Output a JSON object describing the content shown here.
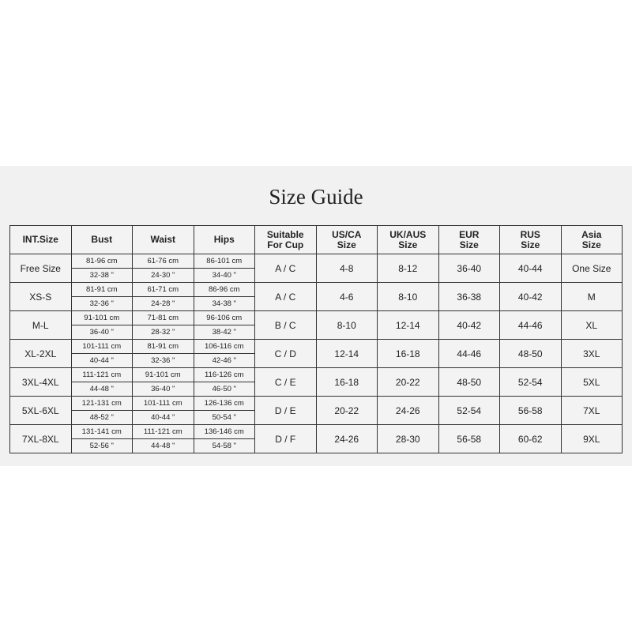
{
  "title": "Size Guide",
  "headers": [
    "INT.Size",
    "Bust",
    "Waist",
    "Hips",
    "Suitable\nFor Cup",
    "US/CA\nSize",
    "UK/AUS\nSize",
    "EUR\nSize",
    "RUS\nSize",
    "Asia\nSize"
  ],
  "rows": [
    {
      "int": "Free Size",
      "bust": [
        "81-96 cm",
        "32-38 \""
      ],
      "waist": [
        "61-76 cm",
        "24-30 \""
      ],
      "hips": [
        "86-101 cm",
        "34-40 \""
      ],
      "cup": "A / C",
      "us": "4-8",
      "uk": "8-12",
      "eur": "36-40",
      "rus": "40-44",
      "asia": "One Size"
    },
    {
      "int": "XS-S",
      "bust": [
        "81-91 cm",
        "32-36 \""
      ],
      "waist": [
        "61-71 cm",
        "24-28 \""
      ],
      "hips": [
        "86-96 cm",
        "34-38 \""
      ],
      "cup": "A / C",
      "us": "4-6",
      "uk": "8-10",
      "eur": "36-38",
      "rus": "40-42",
      "asia": "M"
    },
    {
      "int": "M-L",
      "bust": [
        "91-101 cm",
        "36-40 \""
      ],
      "waist": [
        "71-81 cm",
        "28-32 \""
      ],
      "hips": [
        "96-106 cm",
        "38-42 \""
      ],
      "cup": "B / C",
      "us": "8-10",
      "uk": "12-14",
      "eur": "40-42",
      "rus": "44-46",
      "asia": "XL"
    },
    {
      "int": "XL-2XL",
      "bust": [
        "101-111 cm",
        "40-44 \""
      ],
      "waist": [
        "81-91 cm",
        "32-36 \""
      ],
      "hips": [
        "106-116 cm",
        "42-46 \""
      ],
      "cup": "C / D",
      "us": "12-14",
      "uk": "16-18",
      "eur": "44-46",
      "rus": "48-50",
      "asia": "3XL"
    },
    {
      "int": "3XL-4XL",
      "bust": [
        "111-121 cm",
        "44-48 \""
      ],
      "waist": [
        "91-101 cm",
        "36-40 \""
      ],
      "hips": [
        "116-126 cm",
        "46-50 \""
      ],
      "cup": "C / E",
      "us": "16-18",
      "uk": "20-22",
      "eur": "48-50",
      "rus": "52-54",
      "asia": "5XL"
    },
    {
      "int": "5XL-6XL",
      "bust": [
        "121-131 cm",
        "48-52 \""
      ],
      "waist": [
        "101-111 cm",
        "40-44 \""
      ],
      "hips": [
        "126-136 cm",
        "50-54 \""
      ],
      "cup": "D / E",
      "us": "20-22",
      "uk": "24-26",
      "eur": "52-54",
      "rus": "56-58",
      "asia": "7XL"
    },
    {
      "int": "7XL-8XL",
      "bust": [
        "131-141 cm",
        "52-56 \""
      ],
      "waist": [
        "111-121 cm",
        "44-48 \""
      ],
      "hips": [
        "136-146 cm",
        "54-58 \""
      ],
      "cup": "D / F",
      "us": "24-26",
      "uk": "28-30",
      "eur": "56-58",
      "rus": "60-62",
      "asia": "9XL"
    }
  ]
}
